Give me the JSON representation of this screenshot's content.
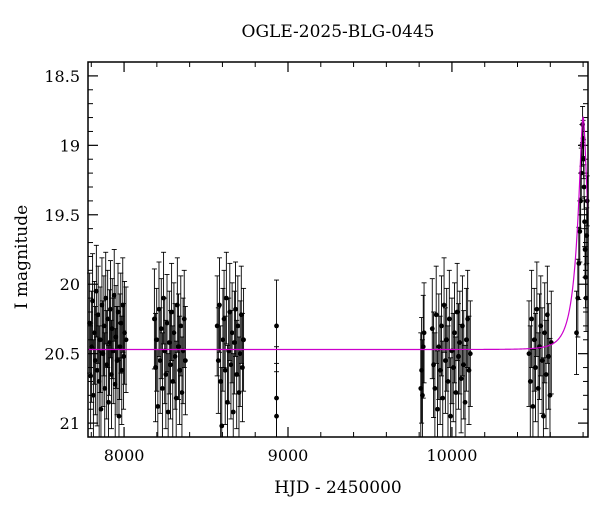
{
  "chart_data": {
    "type": "scatter",
    "title": "OGLE-2025-BLG-0445",
    "xlabel": "HJD - 2450000",
    "ylabel": "I magnitude",
    "xlim": [
      7780,
      10830
    ],
    "ylim": [
      21.1,
      18.4
    ],
    "y_inverted": true,
    "grid": false,
    "legend": "none",
    "x_ticks": [
      8000,
      9000,
      10000
    ],
    "y_ticks": [
      18.5,
      19,
      19.5,
      20,
      20.5,
      21
    ],
    "x_tick_labels": [
      "8000",
      "9000",
      "10000"
    ],
    "y_tick_labels": [
      "18.5",
      "19",
      "19.5",
      "20",
      "20.5",
      "21"
    ],
    "colors": {
      "data": "#000000",
      "model": "#cc00cc"
    },
    "series": [
      {
        "kind": "points-with-errorbars",
        "points": [
          [
            7790,
            20.28,
            0.36
          ],
          [
            7796,
            20.66,
            0.38
          ],
          [
            7802,
            20.45,
            0.4
          ],
          [
            7808,
            20.12,
            0.34
          ],
          [
            7813,
            20.8,
            0.4
          ],
          [
            7819,
            20.35,
            0.37
          ],
          [
            7825,
            20.55,
            0.39
          ],
          [
            7831,
            20.05,
            0.33
          ],
          [
            7836,
            20.62,
            0.4
          ],
          [
            7842,
            20.22,
            0.35
          ],
          [
            7848,
            20.7,
            0.4
          ],
          [
            7854,
            20.4,
            0.38
          ],
          [
            7859,
            20.9,
            0.42
          ],
          [
            7865,
            20.15,
            0.34
          ],
          [
            7871,
            20.5,
            0.38
          ],
          [
            7877,
            20.3,
            0.36
          ],
          [
            7882,
            20.75,
            0.4
          ],
          [
            7888,
            20.1,
            0.33
          ],
          [
            7894,
            20.58,
            0.39
          ],
          [
            7900,
            20.25,
            0.35
          ],
          [
            7905,
            20.85,
            0.41
          ],
          [
            7911,
            20.42,
            0.38
          ],
          [
            7917,
            20.18,
            0.35
          ],
          [
            7923,
            20.65,
            0.39
          ],
          [
            7928,
            20.32,
            0.36
          ],
          [
            7934,
            20.48,
            0.38
          ],
          [
            7940,
            20.08,
            0.33
          ],
          [
            7946,
            20.72,
            0.4
          ],
          [
            7951,
            20.38,
            0.37
          ],
          [
            7957,
            20.55,
            0.39
          ],
          [
            7963,
            20.2,
            0.35
          ],
          [
            7969,
            20.95,
            0.42
          ],
          [
            7974,
            20.45,
            0.38
          ],
          [
            7980,
            20.28,
            0.36
          ],
          [
            7986,
            20.62,
            0.39
          ],
          [
            7992,
            20.15,
            0.34
          ],
          [
            7997,
            20.52,
            0.38
          ],
          [
            8003,
            20.35,
            0.37
          ],
          [
            8012,
            20.4,
            0.38
          ],
          [
            8185,
            20.25,
            0.36
          ],
          [
            8192,
            20.6,
            0.39
          ],
          [
            8199,
            20.4,
            0.37
          ],
          [
            8206,
            20.88,
            0.41
          ],
          [
            8213,
            20.18,
            0.34
          ],
          [
            8220,
            20.55,
            0.38
          ],
          [
            8227,
            20.32,
            0.36
          ],
          [
            8234,
            20.75,
            0.4
          ],
          [
            8241,
            20.1,
            0.33
          ],
          [
            8248,
            20.48,
            0.38
          ],
          [
            8255,
            20.65,
            0.39
          ],
          [
            8262,
            20.28,
            0.35
          ],
          [
            8269,
            20.92,
            0.42
          ],
          [
            8276,
            20.42,
            0.37
          ],
          [
            8283,
            20.58,
            0.39
          ],
          [
            8290,
            20.2,
            0.35
          ],
          [
            8297,
            20.7,
            0.4
          ],
          [
            8304,
            20.35,
            0.36
          ],
          [
            8311,
            20.52,
            0.38
          ],
          [
            8318,
            20.82,
            0.41
          ],
          [
            8325,
            20.15,
            0.34
          ],
          [
            8332,
            20.45,
            0.38
          ],
          [
            8339,
            20.62,
            0.39
          ],
          [
            8346,
            20.3,
            0.36
          ],
          [
            8353,
            20.78,
            0.4
          ],
          [
            8360,
            20.48,
            0.38
          ],
          [
            8367,
            20.25,
            0.35
          ],
          [
            8374,
            20.55,
            0.39
          ],
          [
            8568,
            20.3,
            0.36
          ],
          [
            8575,
            20.55,
            0.38
          ],
          [
            8582,
            20.15,
            0.34
          ],
          [
            8589,
            20.7,
            0.4
          ],
          [
            8596,
            21.02,
            0.42
          ],
          [
            8603,
            20.4,
            0.37
          ],
          [
            8610,
            20.25,
            0.35
          ],
          [
            8617,
            20.62,
            0.39
          ],
          [
            8624,
            20.1,
            0.33
          ],
          [
            8631,
            20.85,
            0.41
          ],
          [
            8638,
            20.48,
            0.38
          ],
          [
            8645,
            20.2,
            0.35
          ],
          [
            8652,
            20.58,
            0.39
          ],
          [
            8659,
            20.35,
            0.36
          ],
          [
            8666,
            20.92,
            0.42
          ],
          [
            8673,
            20.42,
            0.37
          ],
          [
            8680,
            20.18,
            0.34
          ],
          [
            8687,
            20.65,
            0.39
          ],
          [
            8694,
            20.3,
            0.36
          ],
          [
            8701,
            20.78,
            0.4
          ],
          [
            8708,
            20.5,
            0.38
          ],
          [
            8715,
            20.22,
            0.35
          ],
          [
            8722,
            20.6,
            0.39
          ],
          [
            8729,
            20.4,
            0.37
          ],
          [
            8930,
            20.3,
            0.33
          ],
          [
            8930,
            20.82,
            0.37
          ],
          [
            8930,
            20.95,
            0.38
          ],
          [
            9810,
            20.75,
            0.4
          ],
          [
            9815,
            20.62,
            0.38
          ],
          [
            9820,
            20.8,
            0.4
          ],
          [
            9825,
            20.45,
            0.37
          ],
          [
            9830,
            20.35,
            0.36
          ],
          [
            9880,
            20.32,
            0.36
          ],
          [
            9888,
            20.58,
            0.38
          ],
          [
            9896,
            20.75,
            0.4
          ],
          [
            9904,
            20.22,
            0.35
          ],
          [
            9912,
            20.9,
            0.42
          ],
          [
            9920,
            20.45,
            0.38
          ],
          [
            9928,
            20.62,
            0.39
          ],
          [
            9936,
            20.3,
            0.36
          ],
          [
            9944,
            20.82,
            0.41
          ],
          [
            9952,
            20.15,
            0.34
          ],
          [
            9960,
            20.55,
            0.38
          ],
          [
            9968,
            20.4,
            0.37
          ],
          [
            9976,
            20.7,
            0.4
          ],
          [
            9984,
            20.25,
            0.35
          ],
          [
            9992,
            20.95,
            0.42
          ],
          [
            10000,
            20.48,
            0.38
          ],
          [
            10008,
            20.6,
            0.39
          ],
          [
            10016,
            20.35,
            0.36
          ],
          [
            10024,
            20.78,
            0.4
          ],
          [
            10032,
            20.2,
            0.35
          ],
          [
            10040,
            20.52,
            0.38
          ],
          [
            10048,
            20.42,
            0.37
          ],
          [
            10056,
            20.68,
            0.39
          ],
          [
            10064,
            20.3,
            0.36
          ],
          [
            10072,
            20.58,
            0.39
          ],
          [
            10080,
            20.85,
            0.41
          ],
          [
            10088,
            20.4,
            0.37
          ],
          [
            10096,
            20.25,
            0.35
          ],
          [
            10104,
            20.62,
            0.39
          ],
          [
            10112,
            20.5,
            0.38
          ],
          [
            10470,
            20.5,
            0.38
          ],
          [
            10478,
            20.7,
            0.4
          ],
          [
            10486,
            20.25,
            0.35
          ],
          [
            10494,
            20.88,
            0.41
          ],
          [
            10502,
            20.4,
            0.37
          ],
          [
            10510,
            20.6,
            0.39
          ],
          [
            10518,
            20.18,
            0.34
          ],
          [
            10526,
            20.75,
            0.4
          ],
          [
            10534,
            20.45,
            0.38
          ],
          [
            10542,
            20.3,
            0.36
          ],
          [
            10550,
            20.55,
            0.38
          ],
          [
            10558,
            20.95,
            0.42
          ],
          [
            10566,
            20.35,
            0.36
          ],
          [
            10574,
            20.65,
            0.39
          ],
          [
            10582,
            20.22,
            0.35
          ],
          [
            10590,
            20.52,
            0.38
          ],
          [
            10598,
            20.8,
            0.41
          ],
          [
            10606,
            20.42,
            0.37
          ],
          [
            10760,
            20.35,
            0.3
          ],
          [
            10768,
            20.1,
            0.28
          ],
          [
            10774,
            19.85,
            0.26
          ],
          [
            10780,
            19.62,
            0.22
          ],
          [
            10785,
            19.4,
            0.2
          ],
          [
            10789,
            19.2,
            0.18
          ],
          [
            10793,
            19.0,
            0.15
          ],
          [
            10797,
            18.85,
            0.13
          ],
          [
            10800,
            18.95,
            0.13
          ],
          [
            10803,
            19.1,
            0.14
          ],
          [
            10806,
            19.3,
            0.16
          ],
          [
            10809,
            19.55,
            0.18
          ],
          [
            10812,
            19.75,
            0.2
          ],
          [
            10815,
            19.95,
            0.22
          ],
          [
            10818,
            20.1,
            0.24
          ],
          [
            10822,
            19.65,
            0.2
          ],
          [
            10825,
            19.4,
            0.18
          ]
        ]
      },
      {
        "kind": "model-line",
        "baseline": 20.47,
        "peak": 18.8,
        "t0": 10800,
        "tE": 80
      }
    ]
  }
}
